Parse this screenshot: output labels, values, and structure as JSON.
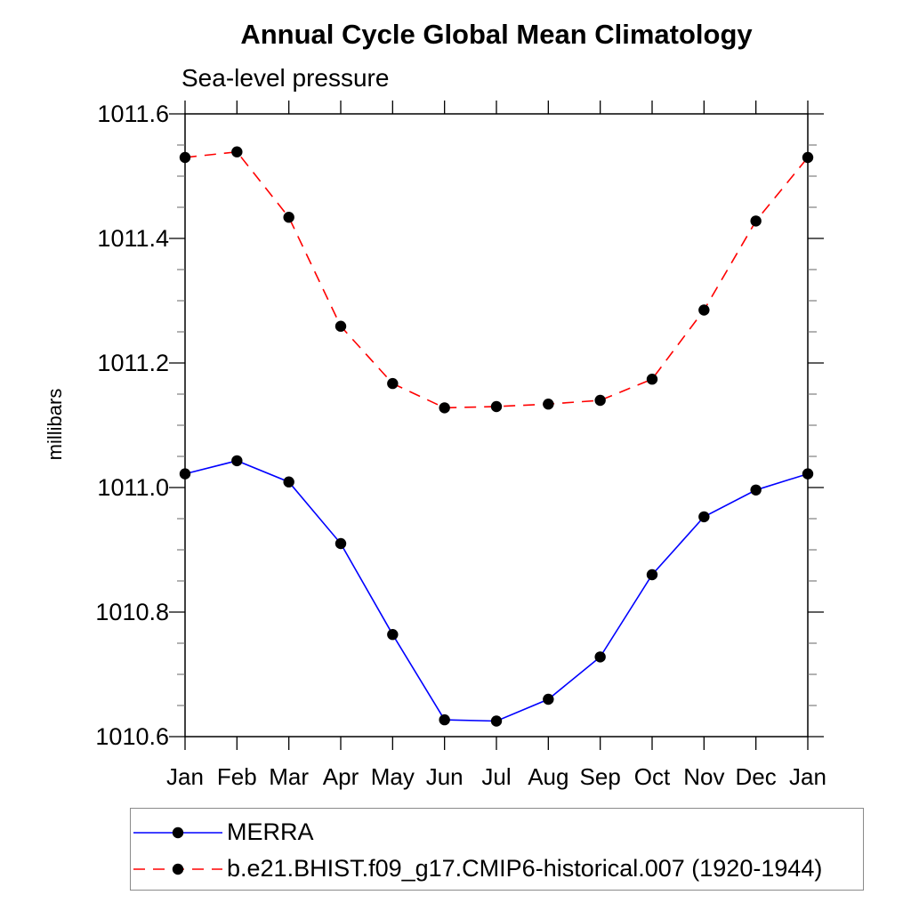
{
  "page": {
    "background": "#ffffff"
  },
  "chart_data": {
    "type": "line",
    "title": "Annual Cycle Global Mean Climatology",
    "subtitle": "Sea-level pressure",
    "xlabel": "",
    "ylabel": "millibars",
    "x_categories": [
      "Jan",
      "Feb",
      "Mar",
      "Apr",
      "May",
      "Jun",
      "Jul",
      "Aug",
      "Sep",
      "Oct",
      "Nov",
      "Dec",
      "Jan"
    ],
    "ylim": [
      1010.6,
      1011.6
    ],
    "ytick_major": [
      1010.6,
      1010.8,
      1011.0,
      1011.2,
      1011.4,
      1011.6
    ],
    "ytick_major_labels": [
      "1010.6",
      "1010.8",
      "1011.0",
      "1011.2",
      "1011.4",
      "1011.6"
    ],
    "ytick_minor_step": 0.05,
    "grid": false,
    "legend_position": "bottom-left-box",
    "axis_color": "#000000",
    "minor_tick_color": "#666666",
    "series": [
      {
        "name": "MERRA",
        "color": "#0000ff",
        "line_style": "solid",
        "marker": "filled-circle",
        "marker_color": "#000000",
        "values": [
          1011.022,
          1011.043,
          1011.009,
          1010.91,
          1010.764,
          1010.627,
          1010.625,
          1010.66,
          1010.728,
          1010.86,
          1010.953,
          1010.996,
          1011.022
        ]
      },
      {
        "name": "b.e21.BHIST.f09_g17.CMIP6-historical.007 (1920-1944)",
        "color": "#ff0000",
        "line_style": "dashed",
        "marker": "filled-circle",
        "marker_color": "#000000",
        "values": [
          1011.53,
          1011.539,
          1011.434,
          1011.259,
          1011.167,
          1011.128,
          1011.13,
          1011.134,
          1011.14,
          1011.174,
          1011.285,
          1011.428,
          1011.53
        ]
      }
    ]
  }
}
